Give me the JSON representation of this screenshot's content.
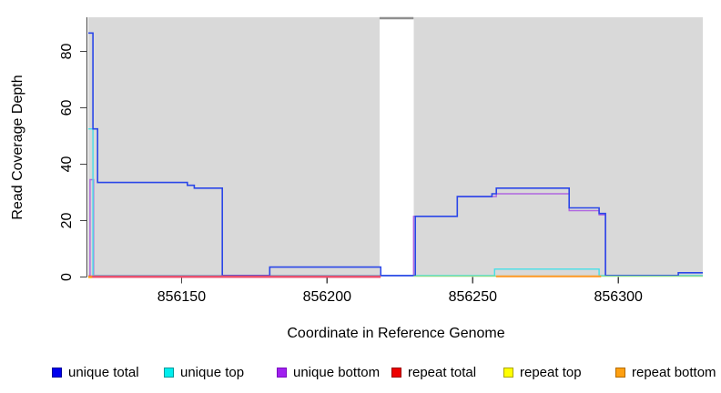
{
  "figure": {
    "background": "#ffffff"
  },
  "x_axis": {
    "title": "Coordinate in Reference Genome",
    "tick_labels": [
      "856150",
      "856200",
      "856250",
      "856300"
    ]
  },
  "y_axis": {
    "title": "Read Coverage Depth",
    "tick_labels": [
      "0",
      "20",
      "40",
      "60",
      "80"
    ]
  },
  "legend": [
    {
      "label": "unique total",
      "color": "#0000ee",
      "border": "#000099"
    },
    {
      "label": "unique top",
      "color": "#00eeee",
      "border": "#009999"
    },
    {
      "label": "unique bottom",
      "color": "#a020f0",
      "border": "#7a0bbf"
    },
    {
      "label": "repeat total",
      "color": "#ee0000",
      "border": "#990000"
    },
    {
      "label": "repeat top",
      "color": "#ffff00",
      "border": "#aaa400"
    },
    {
      "label": "repeat bottom",
      "color": "#ffa011",
      "border": "#b36b00"
    }
  ],
  "chart_data": {
    "type": "line",
    "subtype": "step-coverage",
    "title": "",
    "xlabel": "Coordinate in Reference Genome",
    "ylabel": "Read Coverage Depth",
    "xlim": [
      856118,
      856329
    ],
    "ylim": [
      0,
      92
    ],
    "x_ticks": [
      856150,
      856200,
      856250,
      856300
    ],
    "y_ticks": [
      0,
      20,
      40,
      60,
      80
    ],
    "grid": false,
    "legend_position": "bottom",
    "plot_background": {
      "color": "#d9d9d9",
      "regions": [
        [
          856118,
          856218
        ],
        [
          856229.7,
          856329
        ]
      ],
      "gap": {
        "range": [
          856218,
          856229.7
        ],
        "cap_color": "#8f8f8f"
      }
    },
    "series": [
      {
        "name": "unique bottom",
        "line_color": "#b066e0",
        "line_width": 1.4,
        "points": [
          [
            856118.2,
            0
          ],
          [
            856118.6,
            34
          ],
          [
            856119.8,
            0
          ],
          [
            856229.7,
            21
          ],
          [
            856244.7,
            28
          ],
          [
            856258.1,
            29
          ],
          [
            856283.1,
            23
          ],
          [
            856293.4,
            21.5
          ],
          [
            856295.6,
            0
          ]
        ]
      },
      {
        "name": "unique top",
        "line_color": "#45dfe8",
        "line_width": 1.4,
        "points": [
          [
            856118,
            52
          ],
          [
            856119.6,
            0
          ],
          [
            856257.5,
            2.3
          ],
          [
            856293.4,
            0
          ]
        ]
      },
      {
        "name": "unique total",
        "line_color": "#2a46e8",
        "line_width": 1.6,
        "points": [
          [
            856118,
            86
          ],
          [
            856119.6,
            52
          ],
          [
            856121.2,
            33
          ],
          [
            856152,
            32
          ],
          [
            856154.4,
            31
          ],
          [
            856164,
            0
          ],
          [
            856180.3,
            3
          ],
          [
            856218.4,
            0
          ],
          [
            856230.3,
            21
          ],
          [
            856244.7,
            28
          ],
          [
            856256.6,
            29
          ],
          [
            856258.1,
            31
          ],
          [
            856283.1,
            24
          ],
          [
            856293.4,
            22
          ],
          [
            856295.6,
            0
          ],
          [
            856320.6,
            1
          ]
        ]
      },
      {
        "name": "repeat total",
        "line_color": "#e8506e",
        "line_width": 2.8,
        "points": []
      },
      {
        "name": "repeat top",
        "line_color": "#ffff00",
        "line_width": 1.4,
        "points": []
      },
      {
        "name": "repeat bottom",
        "line_color": "#ff9d2e",
        "line_width": 2.2,
        "points": []
      }
    ],
    "baseline_segments": [
      {
        "series": "repeat total",
        "color": "#e8506e",
        "range": [
          856118,
          856218.4
        ],
        "width": 2.8,
        "dy": 1.2
      },
      {
        "series": "unique top + repeat top overlap",
        "color": "#8bdb8b",
        "range": [
          856229.7,
          856329
        ],
        "width": 1.4,
        "dy": 0.7
      },
      {
        "series": "repeat bottom",
        "color": "#ff9d2e",
        "range": [
          856258,
          856294.1
        ],
        "width": 2.2,
        "dy": 0.9
      },
      {
        "series": "repeat bottom",
        "color": "#ffa011",
        "range": [
          856118,
          856119.3
        ],
        "width": 2.2,
        "dy": 1.7
      }
    ]
  }
}
